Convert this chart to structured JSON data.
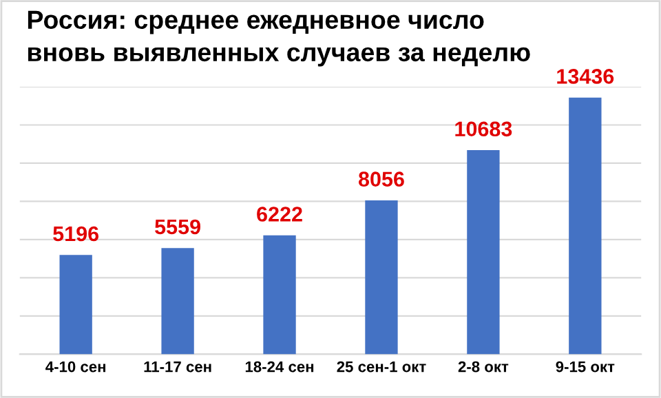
{
  "chart_data": {
    "type": "bar",
    "title": "Россия: среднее ежедневное число\nвновь выявленных случаев за неделю",
    "categories": [
      "4-10 сен",
      "11-17 сен",
      "18-24 сен",
      "25 сен-1 окт",
      "2-8 окт",
      "9-15 окт"
    ],
    "values": [
      5196,
      5559,
      6222,
      8056,
      10683,
      13436
    ],
    "color": "#4472c4",
    "data_labels": true,
    "ylim": [
      0,
      14000
    ],
    "yticks": [
      {
        "value": 0,
        "label": null
      },
      {
        "value": 2000,
        "label": null
      },
      {
        "value": 4000,
        "label": null
      },
      {
        "value": 6000,
        "label": null
      },
      {
        "value": 8000,
        "label": null
      },
      {
        "value": 10000,
        "label": null
      },
      {
        "value": 12000,
        "label": null
      },
      {
        "value": 14000,
        "label": null
      }
    ],
    "tick_labels": "x",
    "grid": "y",
    "legend": false
  }
}
